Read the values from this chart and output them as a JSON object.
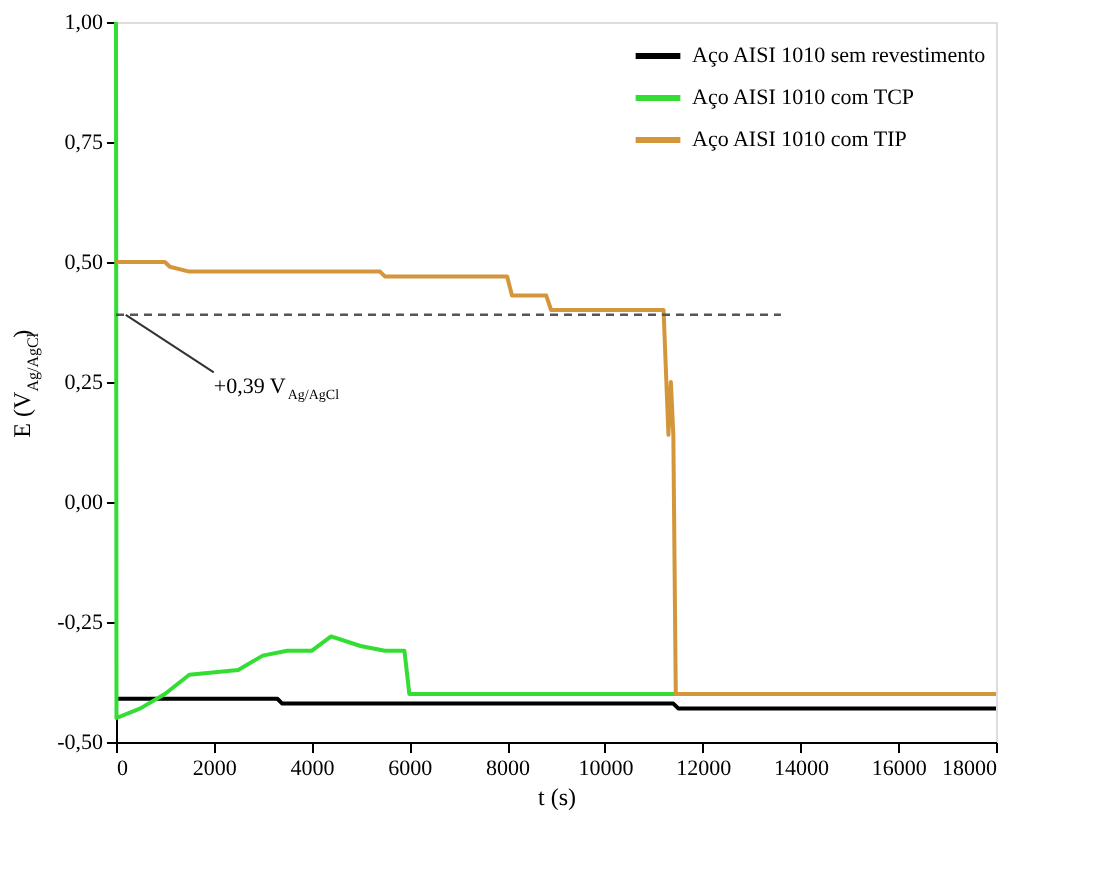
{
  "chart_data": {
    "type": "line",
    "xlabel": "t (s)",
    "ylabel": "E (V$_{Ag/AgCl}$)",
    "xlim": [
      0,
      18000
    ],
    "xticks": [
      0,
      2000,
      4000,
      6000,
      8000,
      10000,
      12000,
      14000,
      16000,
      18000
    ],
    "ylim": [
      -0.5,
      1.0
    ],
    "yticks": [
      {
        "value": -0.5,
        "label": "-0,50"
      },
      {
        "value": -0.25,
        "label": "-0,25"
      },
      {
        "value": 0,
        "label": "0,00"
      },
      {
        "value": 0.25,
        "label": "0,25"
      },
      {
        "value": 0.5,
        "label": "0,50"
      },
      {
        "value": 0.75,
        "label": "0,75"
      },
      {
        "value": 1.0,
        "label": "1,00"
      }
    ],
    "grid": false,
    "legend": "top right",
    "line_style": "solid",
    "series": [
      {
        "name": "Aço AISI 1010 sem revestimento",
        "color": "#000000",
        "x": [
          0,
          3300,
          3400,
          11400,
          11500,
          18000
        ],
        "values": [
          -0.41,
          -0.41,
          -0.42,
          -0.42,
          -0.43,
          -0.43
        ]
      },
      {
        "name": "Aço AISI 1010 com TCP",
        "color": "#33dd33",
        "x": [
          0,
          10,
          500,
          1000,
          1500,
          2500,
          3000,
          3500,
          4000,
          4400,
          5000,
          5500,
          5900,
          6000,
          11500
        ],
        "values": [
          1.0,
          -0.45,
          -0.43,
          -0.4,
          -0.36,
          -0.35,
          -0.32,
          -0.31,
          -0.31,
          -0.28,
          -0.3,
          -0.31,
          -0.31,
          -0.4,
          -0.4
        ]
      },
      {
        "name": "Aço AISI 1010 com TIP",
        "color": "#d4963a",
        "x": [
          0,
          1000,
          1100,
          1500,
          5400,
          5500,
          8000,
          8100,
          8800,
          8900,
          11200,
          11250,
          11300,
          11350,
          11400,
          11450,
          18000
        ],
        "values": [
          0.5,
          0.5,
          0.49,
          0.48,
          0.48,
          0.47,
          0.47,
          0.43,
          0.43,
          0.4,
          0.4,
          0.27,
          0.14,
          0.25,
          0.14,
          -0.4,
          -0.4
        ]
      },
      {
        "type": "line",
        "line_style": "dashed",
        "color": "#555555",
        "x": [
          0,
          13600
        ],
        "values": [
          0.39,
          0.39
        ]
      }
    ],
    "annotations": [
      {
        "text": "+0,39 V$_{Ag/AgCl}$",
        "x": 200,
        "y": 0.39
      }
    ]
  }
}
